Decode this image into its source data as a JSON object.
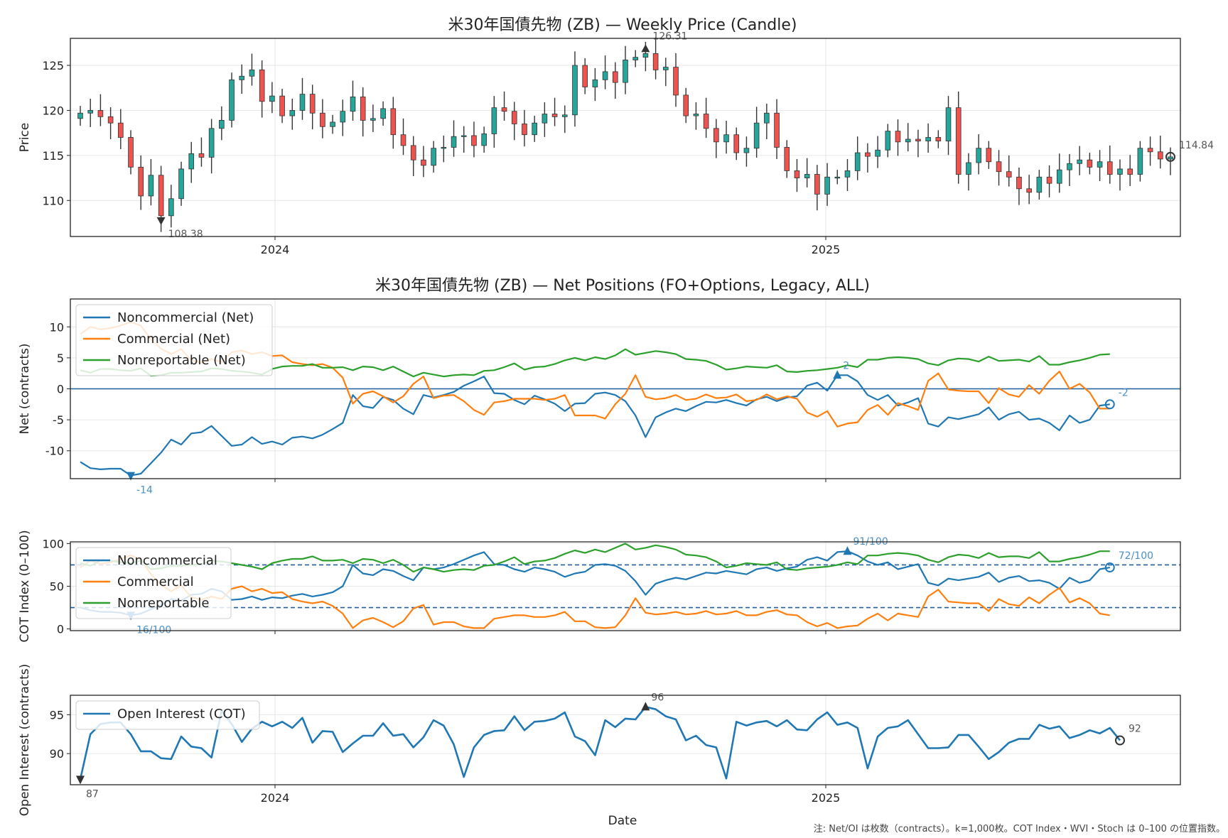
{
  "footer_note": "注: Net/OI は枚数（contracts）。k=1,000枚。COT Index・WVI・Stoch は 0–100 の位置指数。",
  "xlabel": "Date",
  "x_ticks": [
    "2024",
    "2025"
  ],
  "colors": {
    "up": "#26a69a",
    "down": "#ef5350",
    "noncommercial": "#1f77b4",
    "commercial": "#ff7f0e",
    "nonreportable": "#2ca02c",
    "oi": "#1f77b4",
    "mark": "#333333"
  },
  "chart_data": [
    {
      "type": "candlestick",
      "title": "米30年国債先物 (ZB) — Weekly Price (Candle)",
      "ylabel": "Price",
      "ylim": [
        106,
        128
      ],
      "yticks": [
        110,
        115,
        120,
        125
      ],
      "x_start": "2023-07-14",
      "freq": "weekly",
      "close": [
        119.7,
        120.0,
        119.3,
        118.6,
        117.0,
        113.7,
        110.5,
        112.8,
        108.3,
        110.2,
        113.5,
        115.2,
        114.8,
        118.0,
        118.9,
        123.4,
        123.8,
        124.5,
        121.0,
        121.6,
        119.4,
        120.0,
        121.8,
        119.7,
        118.2,
        118.7,
        119.9,
        121.5,
        118.9,
        119.1,
        120.2,
        117.3,
        116.1,
        114.5,
        113.9,
        115.8,
        115.9,
        117.1,
        117.2,
        116.1,
        117.4,
        120.3,
        119.9,
        118.5,
        117.3,
        118.6,
        119.6,
        119.3,
        119.5,
        125.0,
        122.6,
        123.4,
        124.3,
        123.1,
        125.6,
        125.9,
        126.31,
        124.5,
        124.8,
        121.7,
        119.4,
        119.6,
        118.0,
        116.5,
        117.3,
        115.3,
        115.8,
        118.6,
        119.7,
        115.9,
        113.3,
        112.5,
        112.9,
        110.7,
        112.6,
        112.6,
        113.3,
        115.3,
        114.9,
        115.6,
        117.7,
        116.5,
        116.8,
        116.6,
        117.0,
        116.6,
        120.3,
        112.9,
        114.2,
        115.8,
        114.3,
        113.2,
        112.6,
        111.3,
        110.9,
        112.6,
        111.9,
        113.4,
        114.1,
        114.5,
        113.7,
        114.3,
        112.9,
        113.5,
        112.9,
        115.8,
        115.4,
        114.6,
        114.84
      ],
      "low_label": "108.38",
      "high_label": "126.31",
      "last_label": "114.84"
    },
    {
      "type": "line",
      "title": "米30年国債先物 (ZB) — Net Positions (FO+Options, Legacy, ALL)",
      "ylabel": "Net (contracts)",
      "ylim": [
        -14.5,
        14.5
      ],
      "yticks": [
        -10,
        -5,
        0,
        5,
        10
      ],
      "legend": "upper-left",
      "series": [
        {
          "name": "Noncommercial (Net)",
          "values": [
            -11.8,
            -12.8,
            -13.0,
            -12.9,
            -12.9,
            -14.0,
            -13.7,
            -12.0,
            -10.3,
            -8.2,
            -9.0,
            -7.2,
            -7.0,
            -6.0,
            -7.6,
            -9.2,
            -9.0,
            -7.8,
            -8.9,
            -8.5,
            -9.0,
            -7.9,
            -7.7,
            -8.0,
            -7.4,
            -6.5,
            -5.5,
            -1.0,
            -2.8,
            -3.1,
            -1.3,
            -1.8,
            -3.2,
            -4.1,
            -1.0,
            -1.4,
            -1.0,
            -0.5,
            0.5,
            1.2,
            2.0,
            -0.7,
            -0.8,
            -1.8,
            -2.5,
            -1.1,
            -1.7,
            -2.4,
            -3.6,
            -2.4,
            -2.3,
            -0.8,
            -0.6,
            -1.0,
            -2.0,
            -4.3,
            -7.8,
            -4.6,
            -3.8,
            -3.2,
            -3.6,
            -2.8,
            -2.1,
            -2.2,
            -1.8,
            -2.3,
            -2.7,
            -1.7,
            -1.3,
            -2.0,
            -1.4,
            -1.2,
            0.5,
            1.0,
            -0.3,
            2.2,
            2.2,
            1.2,
            -1.0,
            -1.8,
            -1.0,
            -2.7,
            -2.2,
            -1.5,
            -5.6,
            -6.1,
            -4.6,
            -4.9,
            -4.5,
            -4.1,
            -3.0,
            -5.0,
            -4.1,
            -3.7,
            -5.0,
            -4.8,
            -5.5,
            -6.7,
            -4.3,
            -5.5,
            -5.0,
            -2.7,
            -2.5
          ]
        },
        {
          "name": "Commercial (Net)",
          "values": [
            8.8,
            10.0,
            9.6,
            9.8,
            10.2,
            10.8,
            10.2,
            8.0,
            6.5,
            5.6,
            6.4,
            4.6,
            4.2,
            4.8,
            4.3,
            5.9,
            6.2,
            5.6,
            5.9,
            5.3,
            5.4,
            4.3,
            4.0,
            3.8,
            4.0,
            3.4,
            1.8,
            -2.4,
            -0.8,
            -0.4,
            -1.2,
            -2.2,
            -1.2,
            0.8,
            2.0,
            -1.5,
            -1.1,
            -1.0,
            -2.0,
            -3.4,
            -4.2,
            -2.2,
            -2.0,
            -1.6,
            -1.6,
            -1.6,
            -1.8,
            -1.6,
            -1.0,
            -4.3,
            -4.3,
            -4.3,
            -4.8,
            -2.5,
            -0.8,
            2.2,
            -1.3,
            -1.7,
            -1.5,
            -1.0,
            -1.8,
            -1.6,
            -0.9,
            -1.5,
            -1.4,
            -0.9,
            -2.0,
            -1.8,
            -0.9,
            -1.7,
            -1.2,
            -1.6,
            -3.8,
            -4.5,
            -3.6,
            -6.1,
            -5.6,
            -5.4,
            -3.4,
            -2.6,
            -4.2,
            -2.3,
            -2.8,
            -3.4,
            1.3,
            2.5,
            -0.1,
            -0.3,
            -0.4,
            -0.4,
            -2.3,
            0.1,
            -0.9,
            -1.3,
            0.6,
            -0.8,
            1.3,
            2.8,
            0.0,
            0.8,
            -0.6,
            -3.2,
            -3.2
          ]
        },
        {
          "name": "Nonreportable (Net)",
          "values": [
            3.0,
            2.6,
            3.2,
            3.2,
            3.0,
            2.9,
            3.3,
            2.1,
            2.2,
            2.6,
            2.6,
            2.7,
            2.8,
            3.3,
            3.2,
            2.9,
            2.8,
            2.6,
            2.3,
            3.2,
            3.6,
            3.7,
            3.7,
            4.0,
            3.4,
            3.4,
            3.5,
            3.0,
            3.6,
            3.5,
            3.0,
            3.6,
            2.8,
            2.0,
            2.6,
            2.3,
            2.0,
            2.2,
            2.3,
            2.2,
            2.9,
            3.0,
            3.5,
            4.1,
            3.1,
            3.5,
            3.6,
            4.0,
            4.6,
            5.0,
            4.6,
            5.1,
            4.8,
            5.4,
            6.4,
            5.5,
            5.8,
            6.1,
            5.9,
            5.6,
            4.8,
            4.7,
            4.5,
            3.9,
            3.1,
            3.3,
            3.6,
            3.5,
            3.4,
            3.8,
            2.8,
            2.7,
            2.9,
            3.0,
            3.2,
            3.4,
            3.8,
            3.5,
            4.7,
            4.7,
            5.0,
            5.1,
            5.0,
            4.8,
            4.1,
            3.8,
            4.6,
            4.9,
            4.8,
            4.4,
            5.2,
            4.5,
            4.6,
            4.7,
            4.4,
            5.3,
            3.9,
            3.9,
            4.3,
            4.6,
            5.0,
            5.5,
            5.6
          ]
        }
      ],
      "min_label": "-14",
      "max_label": "2",
      "last_label": "-2"
    },
    {
      "type": "line",
      "ylabel": "COT Index (0–100)",
      "ylim": [
        -2,
        102
      ],
      "yticks": [
        0,
        50,
        100
      ],
      "reference_lines": [
        25,
        75
      ],
      "legend": "upper-left",
      "series": [
        {
          "name": "Noncommercial",
          "values": [
            25,
            22,
            20,
            20,
            19,
            16,
            18,
            23,
            28,
            35,
            33,
            40,
            41,
            47,
            44,
            34,
            35,
            38,
            34,
            37,
            36,
            39,
            41,
            38,
            40,
            43,
            50,
            75,
            65,
            63,
            70,
            68,
            62,
            57,
            72,
            70,
            72,
            76,
            81,
            86,
            90,
            76,
            75,
            70,
            67,
            72,
            70,
            67,
            61,
            65,
            67,
            75,
            76,
            74,
            68,
            56,
            40,
            53,
            57,
            60,
            58,
            62,
            66,
            65,
            68,
            66,
            64,
            70,
            72,
            68,
            71,
            73,
            81,
            84,
            80,
            90,
            91,
            86,
            79,
            75,
            78,
            70,
            73,
            76,
            54,
            51,
            59,
            57,
            59,
            61,
            66,
            55,
            60,
            62,
            56,
            57,
            54,
            47,
            60,
            54,
            57,
            70,
            72
          ]
        },
        {
          "name": "Commercial",
          "values": [
            72,
            80,
            76,
            78,
            82,
            86,
            82,
            64,
            52,
            44,
            51,
            37,
            34,
            38,
            35,
            47,
            50,
            44,
            47,
            42,
            43,
            35,
            32,
            30,
            32,
            27,
            18,
            1,
            10,
            13,
            8,
            2,
            9,
            24,
            28,
            5,
            8,
            8,
            3,
            1,
            1,
            12,
            14,
            16,
            16,
            14,
            14,
            16,
            20,
            9,
            9,
            2,
            1,
            2,
            16,
            36,
            19,
            17,
            18,
            20,
            17,
            18,
            21,
            17,
            18,
            21,
            16,
            16,
            20,
            22,
            17,
            16,
            8,
            3,
            7,
            1,
            3,
            4,
            12,
            18,
            10,
            18,
            16,
            14,
            38,
            46,
            32,
            31,
            30,
            30,
            21,
            35,
            29,
            27,
            37,
            30,
            40,
            48,
            31,
            36,
            30,
            18,
            16
          ]
        },
        {
          "name": "Nonreportable",
          "values": [
            77,
            74,
            80,
            80,
            78,
            77,
            80,
            70,
            71,
            74,
            74,
            75,
            76,
            80,
            79,
            77,
            75,
            73,
            70,
            77,
            80,
            82,
            82,
            85,
            80,
            80,
            81,
            77,
            82,
            81,
            77,
            81,
            75,
            67,
            72,
            70,
            67,
            69,
            70,
            69,
            74,
            75,
            79,
            84,
            76,
            79,
            80,
            83,
            88,
            92,
            89,
            93,
            90,
            95,
            100,
            93,
            95,
            98,
            96,
            93,
            87,
            86,
            84,
            79,
            72,
            74,
            77,
            76,
            75,
            78,
            70,
            69,
            71,
            72,
            73,
            75,
            78,
            76,
            86,
            86,
            88,
            89,
            88,
            86,
            81,
            78,
            84,
            87,
            86,
            83,
            89,
            84,
            85,
            85,
            83,
            90,
            79,
            79,
            82,
            84,
            87,
            91,
            91
          ]
        }
      ],
      "min_label": "16/100",
      "max_label": "91/100",
      "last_label": "72/100"
    },
    {
      "type": "line",
      "ylabel": "Open Interest (contracts)",
      "ylim": [
        86,
        97.5
      ],
      "yticks": [
        90,
        95
      ],
      "legend": "upper-left",
      "series": [
        {
          "name": "Open Interest (COT)",
          "values": [
            86.7,
            92.5,
            93.8,
            94.0,
            94.0,
            92.5,
            90.3,
            90.3,
            89.4,
            89.3,
            92.2,
            90.9,
            90.7,
            89.5,
            95.5,
            93.8,
            91.5,
            93.2,
            94.1,
            93.5,
            94.1,
            93.3,
            94.6,
            91.4,
            92.9,
            92.8,
            90.2,
            91.3,
            92.3,
            92.3,
            93.9,
            92.3,
            92.5,
            90.8,
            92.1,
            94.3,
            93.6,
            91.2,
            87.0,
            90.8,
            92.4,
            92.9,
            93.0,
            94.8,
            93.0,
            94.1,
            94.2,
            94.5,
            95.3,
            92.2,
            91.6,
            89.8,
            94.3,
            93.4,
            94.5,
            94.4,
            96.0,
            95.7,
            94.8,
            94.4,
            91.7,
            92.3,
            91.1,
            90.8,
            86.8,
            94.1,
            93.6,
            94.0,
            94.2,
            93.5,
            94.3,
            93.1,
            93.0,
            94.4,
            95.3,
            93.7,
            94.0,
            93.3,
            88.1,
            92.2,
            93.3,
            93.5,
            94.3,
            92.5,
            90.7,
            90.7,
            90.8,
            92.4,
            92.4,
            90.9,
            89.3,
            90.2,
            91.4,
            91.9,
            91.9,
            93.7,
            93.2,
            93.5,
            92.0,
            92.4,
            93.0,
            92.6,
            93.3,
            91.7
          ]
        }
      ],
      "max_label": "96",
      "min_label": "87",
      "last_label": "92"
    }
  ]
}
